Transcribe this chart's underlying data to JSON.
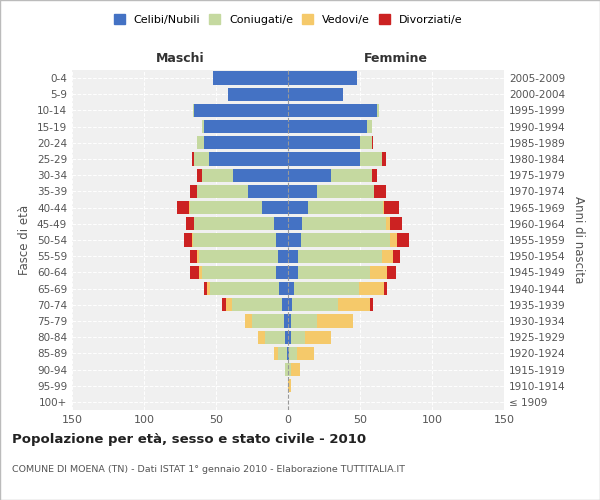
{
  "age_groups": [
    "100+",
    "95-99",
    "90-94",
    "85-89",
    "80-84",
    "75-79",
    "70-74",
    "65-69",
    "60-64",
    "55-59",
    "50-54",
    "45-49",
    "40-44",
    "35-39",
    "30-34",
    "25-29",
    "20-24",
    "15-19",
    "10-14",
    "5-9",
    "0-4"
  ],
  "birth_years": [
    "≤ 1909",
    "1910-1914",
    "1915-1919",
    "1920-1924",
    "1925-1929",
    "1930-1934",
    "1935-1939",
    "1940-1944",
    "1945-1949",
    "1950-1954",
    "1955-1959",
    "1960-1964",
    "1965-1969",
    "1970-1974",
    "1975-1979",
    "1980-1984",
    "1985-1989",
    "1990-1994",
    "1995-1999",
    "2000-2004",
    "2005-2009"
  ],
  "male_celibi": [
    0,
    0,
    0,
    1,
    2,
    3,
    4,
    6,
    8,
    7,
    8,
    10,
    18,
    28,
    38,
    55,
    58,
    58,
    65,
    42,
    52
  ],
  "male_coniugati": [
    0,
    0,
    2,
    6,
    14,
    22,
    35,
    48,
    52,
    55,
    58,
    55,
    50,
    35,
    22,
    10,
    5,
    2,
    1,
    0,
    0
  ],
  "male_vedovi": [
    0,
    0,
    0,
    3,
    5,
    5,
    4,
    2,
    2,
    1,
    1,
    0,
    1,
    0,
    0,
    0,
    0,
    0,
    0,
    0,
    0
  ],
  "male_divorziati": [
    0,
    0,
    0,
    0,
    0,
    0,
    3,
    2,
    6,
    5,
    5,
    6,
    8,
    5,
    3,
    2,
    0,
    0,
    0,
    0,
    0
  ],
  "female_celibi": [
    0,
    0,
    0,
    1,
    2,
    2,
    3,
    4,
    7,
    7,
    9,
    10,
    14,
    20,
    30,
    50,
    50,
    55,
    62,
    38,
    48
  ],
  "female_coniugati": [
    0,
    0,
    2,
    5,
    10,
    18,
    32,
    45,
    50,
    58,
    62,
    58,
    52,
    40,
    28,
    15,
    8,
    3,
    1,
    0,
    0
  ],
  "female_vedovi": [
    0,
    2,
    6,
    12,
    18,
    25,
    22,
    18,
    12,
    8,
    5,
    3,
    1,
    0,
    0,
    0,
    0,
    0,
    0,
    0,
    0
  ],
  "female_divorziati": [
    0,
    0,
    0,
    0,
    0,
    0,
    2,
    2,
    6,
    5,
    8,
    8,
    10,
    8,
    4,
    3,
    1,
    0,
    0,
    0,
    0
  ],
  "color_celibi": "#4472c4",
  "color_coniugati": "#c5d9a0",
  "color_vedovi": "#f5c96a",
  "color_divorziati": "#cc2222",
  "xlim": 150,
  "title": "Popolazione per età, sesso e stato civile - 2010",
  "subtitle": "COMUNE DI MOENA (TN) - Dati ISTAT 1° gennaio 2010 - Elaborazione TUTTITALIA.IT",
  "ylabel_left": "Fasce di età",
  "ylabel_right": "Anni di nascita",
  "header_male": "Maschi",
  "header_female": "Femmine"
}
